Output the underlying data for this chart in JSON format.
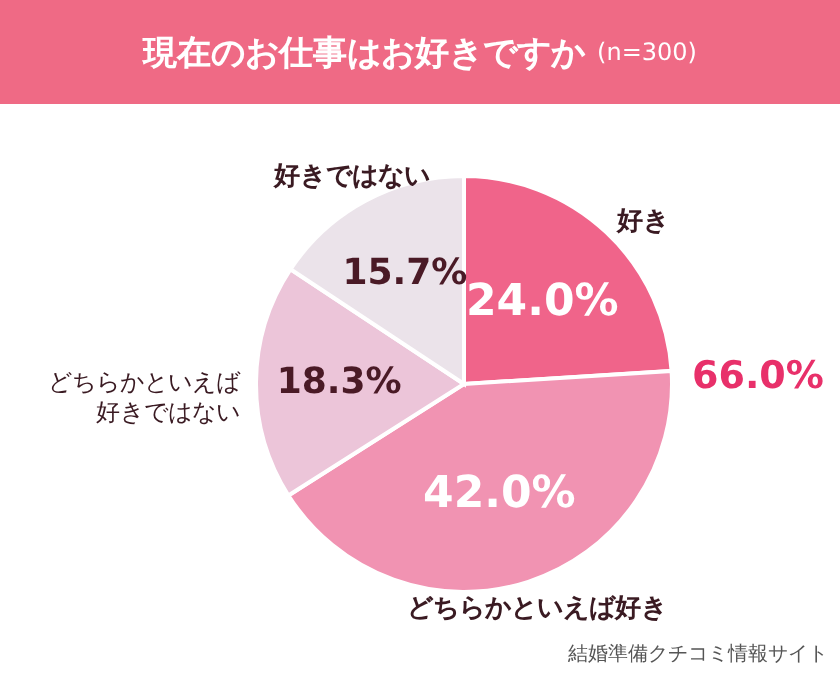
{
  "chart_data": {
    "type": "pie",
    "title": "現在のお仕事はお好きですか",
    "subtitle": "(n=300)",
    "categories": [
      "好き",
      "どちらかといえば好き",
      "どちらかといえば好きではない",
      "好きではない"
    ],
    "values": [
      24.0,
      42.0,
      18.3,
      15.7
    ],
    "value_labels": [
      "24.0%",
      "42.0%",
      "18.3%",
      "15.7%"
    ],
    "colors": [
      "#f0648a",
      "#f193b2",
      "#ecc5d9",
      "#ebe3ea"
    ],
    "annotations": [
      "66.0%",
      "結婚準備クチコミ情報サイト"
    ]
  }
}
